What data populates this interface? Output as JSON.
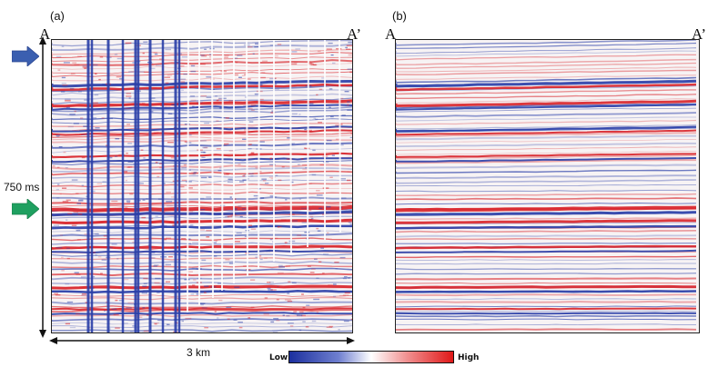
{
  "panels": [
    {
      "id": "a",
      "label": "(a)",
      "left_label": "A",
      "right_label": "A’"
    },
    {
      "id": "b",
      "label": "(b)",
      "left_label": "A",
      "right_label": "A’"
    }
  ],
  "annotations": {
    "time_scale": "750 ms",
    "distance_scale": "3 km",
    "arrow_colors": {
      "upper": "#3b5fb0",
      "lower": "#1fa060"
    }
  },
  "colorbar": {
    "low_label": "Low",
    "high_label": "High",
    "colors": [
      "#1b2f9e",
      "#6f7fcf",
      "#ffffff",
      "#f08f8f",
      "#e01818"
    ]
  },
  "seismic": {
    "colors": {
      "positive": "#d8242a",
      "negative": "#2a3fa8"
    }
  }
}
